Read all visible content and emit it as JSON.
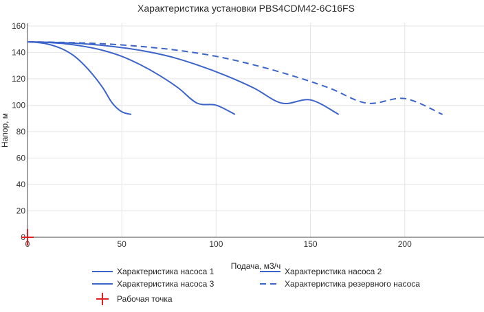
{
  "chart_data": {
    "type": "line",
    "title": "Характеристика установки PBS4CDM42-6C16FS",
    "xlabel": "Подача, м3/ч",
    "ylabel": "Напор, м",
    "xlim": [
      0,
      242
    ],
    "ylim": [
      0,
      162
    ],
    "xticks": [
      0,
      50,
      100,
      150,
      200
    ],
    "yticks": [
      0,
      20,
      40,
      60,
      80,
      100,
      120,
      140,
      160
    ],
    "grid": true,
    "legend_position": "bottom",
    "series": [
      {
        "name": "Характеристика насоса 1",
        "color": "#3b63c9",
        "dash": "solid",
        "x": [
          0,
          5,
          10,
          15,
          20,
          25,
          30,
          35,
          40,
          45,
          50,
          55
        ],
        "y": [
          148,
          147.5,
          146.5,
          144.5,
          141.5,
          137,
          130.5,
          122.5,
          113,
          101.5,
          95,
          93
        ]
      },
      {
        "name": "Характеристика насоса 2",
        "color": "#3b63c9",
        "dash": "solid",
        "x": [
          0,
          10,
          20,
          30,
          40,
          50,
          60,
          70,
          80,
          90,
          100,
          110
        ],
        "y": [
          148,
          147.5,
          146.5,
          144.5,
          141.5,
          137,
          130.5,
          122.5,
          113,
          101.5,
          100,
          93
        ]
      },
      {
        "name": "Характеристика насоса 3",
        "color": "#3b63c9",
        "dash": "solid",
        "x": [
          0,
          15,
          30,
          45,
          60,
          75,
          90,
          105,
          120,
          135,
          150,
          165
        ],
        "y": [
          148,
          147.5,
          146.5,
          144.5,
          141.5,
          137,
          130.5,
          122.5,
          113,
          101.5,
          104,
          93
        ]
      },
      {
        "name": "Характеристика резервного насоса",
        "color": "#3b63c9",
        "dash": "dashed",
        "x": [
          0,
          20,
          40,
          60,
          80,
          100,
          120,
          140,
          160,
          180,
          200,
          220
        ],
        "y": [
          148,
          147.5,
          146.5,
          144.5,
          141.5,
          137,
          130.5,
          122.5,
          113,
          101.5,
          105,
          93
        ]
      }
    ],
    "working_point": {
      "name": "Рабочая точка",
      "color": "#e02020",
      "x": 0,
      "y": 0
    }
  }
}
